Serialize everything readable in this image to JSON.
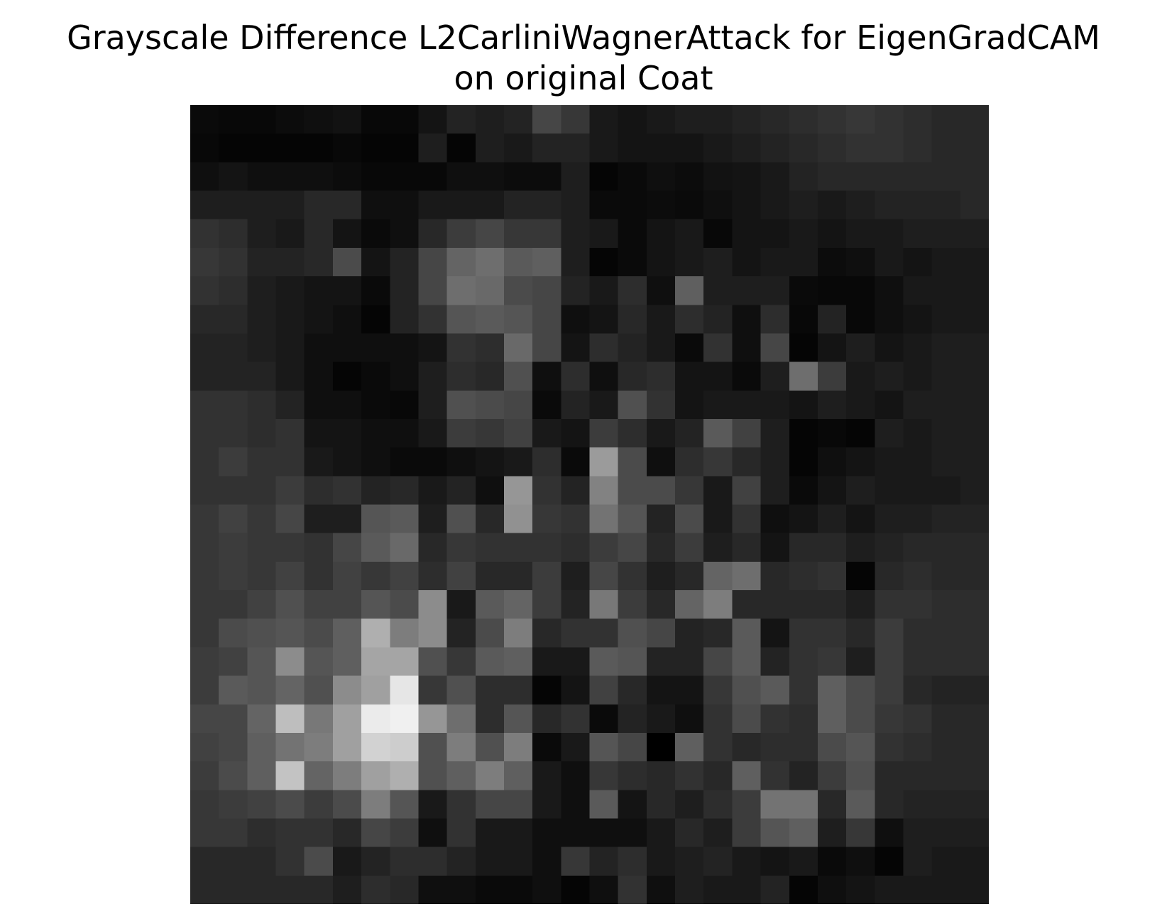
{
  "chart_data": {
    "type": "heatmap",
    "title": [
      "Grayscale Difference L2CarliniWagnerAttack for EigenGradCAM",
      "on original Coat"
    ],
    "colormap": "gray",
    "rows": 28,
    "cols": 28,
    "value_range": [
      0,
      255
    ],
    "axes_visible": false,
    "values": [
      [
        10,
        8,
        8,
        12,
        15,
        18,
        8,
        8,
        20,
        35,
        30,
        35,
        70,
        55,
        25,
        20,
        25,
        30,
        30,
        35,
        40,
        45,
        50,
        55,
        50,
        45,
        40,
        40
      ],
      [
        8,
        5,
        5,
        5,
        5,
        8,
        5,
        5,
        30,
        5,
        30,
        25,
        35,
        35,
        25,
        20,
        20,
        20,
        25,
        30,
        35,
        40,
        45,
        50,
        50,
        45,
        40,
        40
      ],
      [
        15,
        20,
        15,
        15,
        15,
        12,
        8,
        8,
        8,
        15,
        15,
        12,
        12,
        30,
        5,
        10,
        15,
        12,
        18,
        20,
        25,
        35,
        40,
        40,
        40,
        40,
        40,
        40
      ],
      [
        30,
        30,
        30,
        30,
        40,
        40,
        15,
        15,
        25,
        25,
        25,
        35,
        35,
        30,
        10,
        10,
        12,
        10,
        15,
        20,
        25,
        30,
        25,
        30,
        35,
        35,
        35,
        40
      ],
      [
        50,
        45,
        30,
        25,
        40,
        20,
        10,
        15,
        40,
        60,
        70,
        55,
        55,
        30,
        25,
        10,
        20,
        25,
        8,
        20,
        20,
        25,
        20,
        25,
        25,
        30,
        30,
        30
      ],
      [
        55,
        50,
        35,
        35,
        40,
        75,
        20,
        35,
        70,
        100,
        110,
        90,
        95,
        30,
        5,
        10,
        20,
        25,
        30,
        20,
        25,
        25,
        12,
        15,
        25,
        20,
        25,
        25
      ],
      [
        50,
        45,
        30,
        25,
        20,
        20,
        10,
        35,
        70,
        110,
        105,
        75,
        70,
        35,
        25,
        45,
        15,
        95,
        30,
        30,
        30,
        10,
        8,
        8,
        15,
        25,
        25,
        25
      ],
      [
        40,
        40,
        30,
        25,
        20,
        15,
        5,
        35,
        50,
        85,
        90,
        85,
        70,
        15,
        20,
        40,
        25,
        45,
        35,
        15,
        45,
        8,
        35,
        8,
        15,
        20,
        25,
        25
      ],
      [
        35,
        35,
        30,
        25,
        15,
        15,
        15,
        15,
        20,
        50,
        45,
        105,
        70,
        20,
        45,
        35,
        25,
        10,
        50,
        15,
        70,
        5,
        20,
        30,
        20,
        25,
        30,
        30
      ],
      [
        35,
        35,
        35,
        25,
        15,
        5,
        10,
        15,
        30,
        45,
        40,
        80,
        15,
        45,
        15,
        40,
        45,
        20,
        20,
        10,
        30,
        110,
        60,
        25,
        30,
        25,
        30,
        30
      ],
      [
        50,
        50,
        45,
        35,
        15,
        15,
        10,
        8,
        30,
        80,
        75,
        70,
        10,
        35,
        25,
        80,
        50,
        20,
        25,
        25,
        25,
        20,
        30,
        25,
        20,
        30,
        30,
        30
      ],
      [
        50,
        50,
        45,
        50,
        20,
        20,
        15,
        15,
        25,
        60,
        55,
        65,
        25,
        20,
        60,
        45,
        25,
        35,
        90,
        65,
        30,
        5,
        8,
        5,
        30,
        25,
        30,
        30
      ],
      [
        50,
        60,
        50,
        50,
        25,
        20,
        15,
        10,
        10,
        15,
        20,
        25,
        45,
        10,
        155,
        75,
        15,
        45,
        55,
        40,
        30,
        5,
        15,
        20,
        25,
        25,
        30,
        30
      ],
      [
        50,
        50,
        50,
        60,
        45,
        50,
        35,
        40,
        25,
        35,
        15,
        150,
        50,
        35,
        130,
        75,
        75,
        55,
        25,
        65,
        30,
        10,
        20,
        30,
        25,
        25,
        25,
        30
      ],
      [
        55,
        65,
        55,
        70,
        30,
        30,
        85,
        90,
        30,
        80,
        40,
        145,
        55,
        50,
        115,
        85,
        35,
        75,
        25,
        50,
        15,
        20,
        30,
        20,
        30,
        30,
        35,
        35
      ],
      [
        55,
        60,
        55,
        55,
        50,
        70,
        90,
        105,
        40,
        55,
        50,
        50,
        50,
        45,
        60,
        70,
        40,
        60,
        30,
        40,
        20,
        40,
        40,
        30,
        35,
        40,
        40,
        40
      ],
      [
        55,
        60,
        55,
        65,
        50,
        65,
        55,
        65,
        45,
        65,
        40,
        40,
        60,
        30,
        70,
        50,
        30,
        40,
        100,
        110,
        40,
        45,
        50,
        5,
        40,
        45,
        40,
        40
      ],
      [
        55,
        55,
        65,
        80,
        65,
        65,
        85,
        75,
        140,
        25,
        90,
        100,
        60,
        35,
        120,
        60,
        40,
        100,
        125,
        40,
        40,
        40,
        40,
        30,
        50,
        50,
        45,
        45
      ],
      [
        55,
        75,
        80,
        85,
        75,
        95,
        175,
        125,
        140,
        35,
        75,
        125,
        40,
        50,
        50,
        80,
        70,
        35,
        40,
        90,
        20,
        50,
        50,
        40,
        60,
        45,
        45,
        45
      ],
      [
        60,
        65,
        85,
        140,
        85,
        95,
        165,
        165,
        80,
        55,
        90,
        95,
        25,
        25,
        90,
        85,
        35,
        35,
        70,
        90,
        35,
        50,
        55,
        30,
        60,
        45,
        45,
        45
      ],
      [
        60,
        90,
        85,
        100,
        80,
        140,
        160,
        230,
        55,
        80,
        45,
        45,
        5,
        20,
        65,
        40,
        20,
        20,
        55,
        80,
        90,
        50,
        95,
        75,
        60,
        40,
        35,
        35
      ],
      [
        70,
        70,
        100,
        190,
        120,
        160,
        235,
        240,
        150,
        110,
        45,
        85,
        40,
        50,
        10,
        35,
        25,
        15,
        50,
        75,
        50,
        45,
        95,
        75,
        55,
        50,
        40,
        40
      ],
      [
        65,
        70,
        95,
        115,
        125,
        160,
        210,
        205,
        80,
        125,
        80,
        125,
        10,
        25,
        85,
        70,
        0,
        95,
        50,
        40,
        45,
        45,
        75,
        85,
        50,
        45,
        40,
        40
      ],
      [
        60,
        75,
        95,
        195,
        100,
        125,
        160,
        175,
        80,
        95,
        125,
        95,
        25,
        15,
        55,
        45,
        40,
        50,
        40,
        95,
        50,
        35,
        60,
        80,
        40,
        40,
        40,
        40
      ],
      [
        55,
        60,
        65,
        75,
        60,
        75,
        125,
        85,
        25,
        50,
        70,
        70,
        25,
        15,
        90,
        20,
        40,
        30,
        45,
        60,
        115,
        115,
        40,
        90,
        40,
        35,
        35,
        35
      ],
      [
        55,
        55,
        45,
        50,
        50,
        40,
        70,
        60,
        15,
        50,
        25,
        25,
        15,
        15,
        15,
        15,
        25,
        40,
        30,
        60,
        85,
        95,
        30,
        55,
        15,
        30,
        30,
        30
      ],
      [
        40,
        40,
        40,
        50,
        75,
        25,
        35,
        45,
        45,
        35,
        25,
        25,
        15,
        55,
        35,
        45,
        25,
        30,
        35,
        25,
        20,
        25,
        10,
        15,
        5,
        30,
        25,
        25
      ],
      [
        40,
        40,
        40,
        40,
        40,
        30,
        45,
        40,
        15,
        15,
        10,
        10,
        15,
        5,
        15,
        50,
        15,
        30,
        25,
        25,
        35,
        5,
        15,
        20,
        25,
        25,
        25,
        25
      ]
    ]
  }
}
